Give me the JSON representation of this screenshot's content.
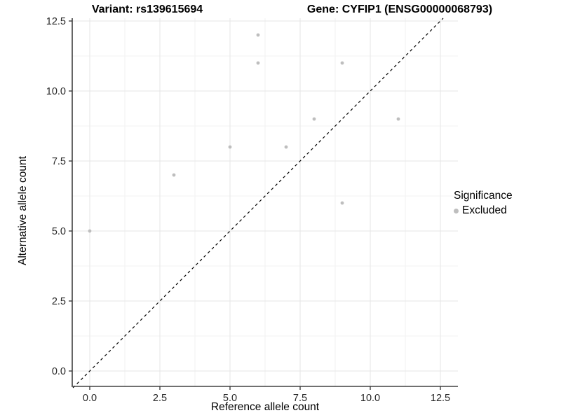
{
  "colors": {
    "point": "#bebebe",
    "grid_major": "#e6e6e6",
    "grid_minor": "#f2f2f2",
    "axis": "#404040",
    "tick": "#333333",
    "reference_line": "#000000",
    "background": "#ffffff"
  },
  "legend": {
    "title": "Significance",
    "items": [
      {
        "label": "Excluded",
        "color": "#bebebe"
      }
    ]
  },
  "chart_data": {
    "type": "scatter",
    "title_left": "Variant: rs139615694",
    "title_right": "Gene: CYFIP1 (ENSG00000068793)",
    "xlabel": "Reference allele count",
    "ylabel": "Alternative allele count",
    "xlim": [
      -0.625,
      13.125
    ],
    "ylim": [
      -0.6,
      12.6
    ],
    "x_ticks": [
      0,
      2.5,
      5,
      7.5,
      10,
      12.5
    ],
    "y_ticks": [
      0,
      2.5,
      5,
      7.5,
      10,
      12.5
    ],
    "x_minor_ticks": [
      1.25,
      3.75,
      6.25,
      8.75,
      11.25
    ],
    "y_minor_ticks": [
      1.25,
      3.75,
      6.25,
      8.75,
      11.25
    ],
    "grid": true,
    "legend_position": "right",
    "legend_title": "Significance",
    "series": [
      {
        "name": "Excluded",
        "color": "#bebebe",
        "points": [
          [
            0,
            5
          ],
          [
            3,
            7
          ],
          [
            5,
            8
          ],
          [
            6,
            11
          ],
          [
            6,
            12
          ],
          [
            7,
            8
          ],
          [
            8,
            9
          ],
          [
            9,
            6
          ],
          [
            9,
            11
          ],
          [
            11,
            9
          ]
        ]
      }
    ],
    "reference_line": {
      "type": "identity",
      "slope": 1,
      "intercept": 0,
      "style": "dashed",
      "color": "#000000"
    }
  }
}
